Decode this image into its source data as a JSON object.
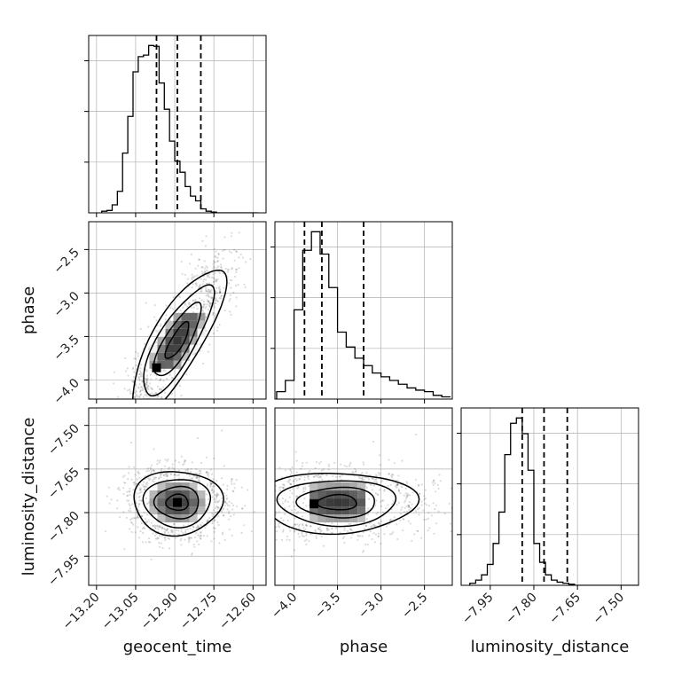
{
  "chart_data": {
    "type": "corner",
    "parameters": [
      "geocent_time",
      "phase",
      "luminosity_distance"
    ],
    "ranges": {
      "geocent_time": [
        -13.23,
        -12.55
      ],
      "phase": [
        -4.22,
        -2.18
      ],
      "luminosity_distance": [
        -8.05,
        -7.44
      ]
    },
    "ticks": {
      "geocent_time": [
        -13.2,
        -13.05,
        -12.9,
        -12.75,
        -12.6
      ],
      "phase": [
        -4.0,
        -3.5,
        -3.0,
        -2.5
      ],
      "luminosity_distance": [
        -7.95,
        -7.8,
        -7.65,
        -7.5
      ]
    },
    "tick_labels": {
      "geocent_time": [
        "−13.20",
        "−13.05",
        "−12.90",
        "−12.75",
        "−12.60"
      ],
      "phase": [
        "−4.0",
        "−3.5",
        "−3.0",
        "−2.5"
      ],
      "luminosity_distance": [
        "−7.95",
        "−7.80",
        "−7.65",
        "−7.50"
      ]
    },
    "quantiles": {
      "geocent_time": [
        -12.97,
        -12.89,
        -12.8
      ],
      "phase": [
        -3.88,
        -3.68,
        -3.2
      ],
      "luminosity_distance": [
        -7.84,
        -7.765,
        -7.685
      ]
    },
    "histograms": {
      "geocent_time": {
        "edges_start": -13.18,
        "bin_width": 0.02,
        "counts": [
          2,
          3,
          10,
          27,
          75,
          121,
          177,
          196,
          198,
          210,
          209,
          163,
          130,
          90,
          65,
          51,
          33,
          21,
          15,
          5,
          2,
          1,
          0,
          0,
          0,
          0,
          0,
          0,
          0,
          0
        ]
      },
      "phase": {
        "edges_start": -4.2,
        "bin_width": 0.1,
        "counts": [
          10,
          25,
          120,
          200,
          225,
          195,
          150,
          90,
          70,
          55,
          45,
          35,
          30,
          25,
          20,
          15,
          12,
          10,
          5,
          3
        ]
      },
      "luminosity_distance": {
        "edges_start": -8.02,
        "bin_width": 0.02,
        "counts": [
          2,
          5,
          10,
          20,
          40,
          70,
          125,
          155,
          160,
          145,
          110,
          40,
          22,
          10,
          5,
          3,
          2,
          1,
          0,
          0,
          0,
          0,
          0,
          0,
          0,
          0,
          0,
          0,
          0,
          0
        ]
      }
    },
    "panels_2d": [
      {
        "x": "geocent_time",
        "y": "phase",
        "mean": [
          -12.89,
          -3.55
        ],
        "sd": [
          0.09,
          0.42
        ],
        "corr": 0.8,
        "mode": [
          -12.97,
          -3.86
        ]
      },
      {
        "x": "geocent_time",
        "y": "luminosity_distance",
        "mean": [
          -12.89,
          -7.765
        ],
        "sd": [
          0.085,
          0.055
        ],
        "corr": 0.0,
        "mode": [
          -12.89,
          -7.765
        ]
      },
      {
        "x": "phase",
        "y": "luminosity_distance",
        "mean": [
          -3.5,
          -7.765
        ],
        "sd": [
          0.45,
          0.052
        ],
        "corr": 0.0,
        "mode": [
          -3.77,
          -7.77
        ]
      }
    ],
    "contour_levels_sigma": [
      0.5,
      1.0,
      1.5,
      2.0
    ],
    "title": ""
  },
  "colors": {
    "line": "#000000",
    "grid": "#b0b0b0",
    "scatter": "#000000",
    "axis": "#000000"
  }
}
